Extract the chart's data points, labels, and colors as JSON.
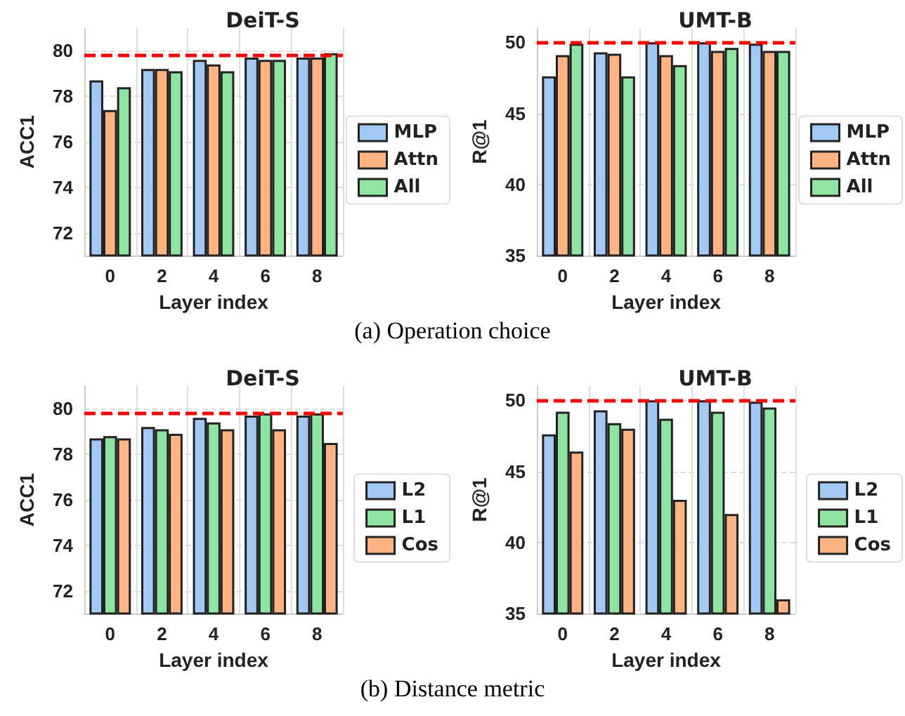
{
  "chart_data": [
    {
      "type": "bar",
      "title": "DeiT-S",
      "xlabel": "Layer index",
      "ylabel": "ACC1",
      "categories": [
        "0",
        "2",
        "4",
        "6",
        "8"
      ],
      "series": [
        {
          "name": "MLP",
          "color": "#a1c9f4",
          "values": [
            78.7,
            79.2,
            79.6,
            79.7,
            79.7
          ]
        },
        {
          "name": "Attn",
          "color": "#ffb482",
          "values": [
            77.4,
            79.2,
            79.4,
            79.6,
            79.7
          ]
        },
        {
          "name": "All",
          "color": "#8de5a1",
          "values": [
            78.4,
            79.1,
            79.1,
            79.6,
            79.9
          ]
        }
      ],
      "ylim": [
        71,
        81
      ],
      "yticks": [
        72,
        74,
        76,
        78,
        80
      ],
      "grid": true,
      "legend": "right",
      "ref_lines": [
        {
          "axis": "y",
          "value": 79.8,
          "color": "#ff0000",
          "line_style": "dashed"
        }
      ],
      "annotations": [
        "(a) Operation choice"
      ]
    },
    {
      "type": "bar",
      "title": "UMT-B",
      "xlabel": "Layer index",
      "ylabel": "R@1",
      "categories": [
        "0",
        "2",
        "4",
        "6",
        "8"
      ],
      "series": [
        {
          "name": "MLP",
          "color": "#a1c9f4",
          "values": [
            47.6,
            49.3,
            50.0,
            50.0,
            49.9
          ]
        },
        {
          "name": "Attn",
          "color": "#ffb482",
          "values": [
            49.1,
            49.2,
            49.1,
            49.4,
            49.4
          ]
        },
        {
          "name": "All",
          "color": "#8de5a1",
          "values": [
            49.9,
            47.6,
            48.4,
            49.6,
            49.4
          ]
        }
      ],
      "ylim": [
        35,
        51
      ],
      "yticks": [
        35,
        40,
        45,
        50
      ],
      "grid": true,
      "legend": "right",
      "ref_lines": [
        {
          "axis": "y",
          "value": 50.0,
          "color": "#ff0000",
          "line_style": "dashed"
        }
      ]
    },
    {
      "type": "bar",
      "title": "DeiT-S",
      "xlabel": "Layer index",
      "ylabel": "ACC1",
      "categories": [
        "0",
        "2",
        "4",
        "6",
        "8"
      ],
      "series": [
        {
          "name": "L2",
          "color": "#a1c9f4",
          "values": [
            78.7,
            79.2,
            79.6,
            79.7,
            79.7
          ]
        },
        {
          "name": "L1",
          "color": "#8de5a1",
          "values": [
            78.8,
            79.1,
            79.4,
            79.8,
            79.8
          ]
        },
        {
          "name": "Cos",
          "color": "#ffb482",
          "values": [
            78.7,
            78.9,
            79.1,
            79.1,
            78.5
          ]
        }
      ],
      "ylim": [
        71,
        81
      ],
      "yticks": [
        72,
        74,
        76,
        78,
        80
      ],
      "grid": true,
      "legend": "right",
      "ref_lines": [
        {
          "axis": "y",
          "value": 79.8,
          "color": "#ff0000",
          "line_style": "dashed"
        }
      ],
      "annotations": [
        "(b) Distance metric"
      ]
    },
    {
      "type": "bar",
      "title": "UMT-B",
      "xlabel": "Layer index",
      "ylabel": "R@1",
      "categories": [
        "0",
        "2",
        "4",
        "6",
        "8"
      ],
      "series": [
        {
          "name": "L2",
          "color": "#a1c9f4",
          "values": [
            47.6,
            49.3,
            50.0,
            50.0,
            49.9
          ]
        },
        {
          "name": "L1",
          "color": "#8de5a1",
          "values": [
            49.2,
            48.4,
            48.7,
            49.2,
            49.5
          ]
        },
        {
          "name": "Cos",
          "color": "#ffb482",
          "values": [
            46.4,
            48.0,
            43.0,
            42.0,
            36.0
          ]
        }
      ],
      "ylim": [
        35,
        51
      ],
      "yticks": [
        35,
        40,
        45,
        50
      ],
      "grid": true,
      "legend": "right",
      "ref_lines": [
        {
          "axis": "y",
          "value": 50.0,
          "color": "#ff0000",
          "line_style": "dashed"
        }
      ]
    }
  ]
}
